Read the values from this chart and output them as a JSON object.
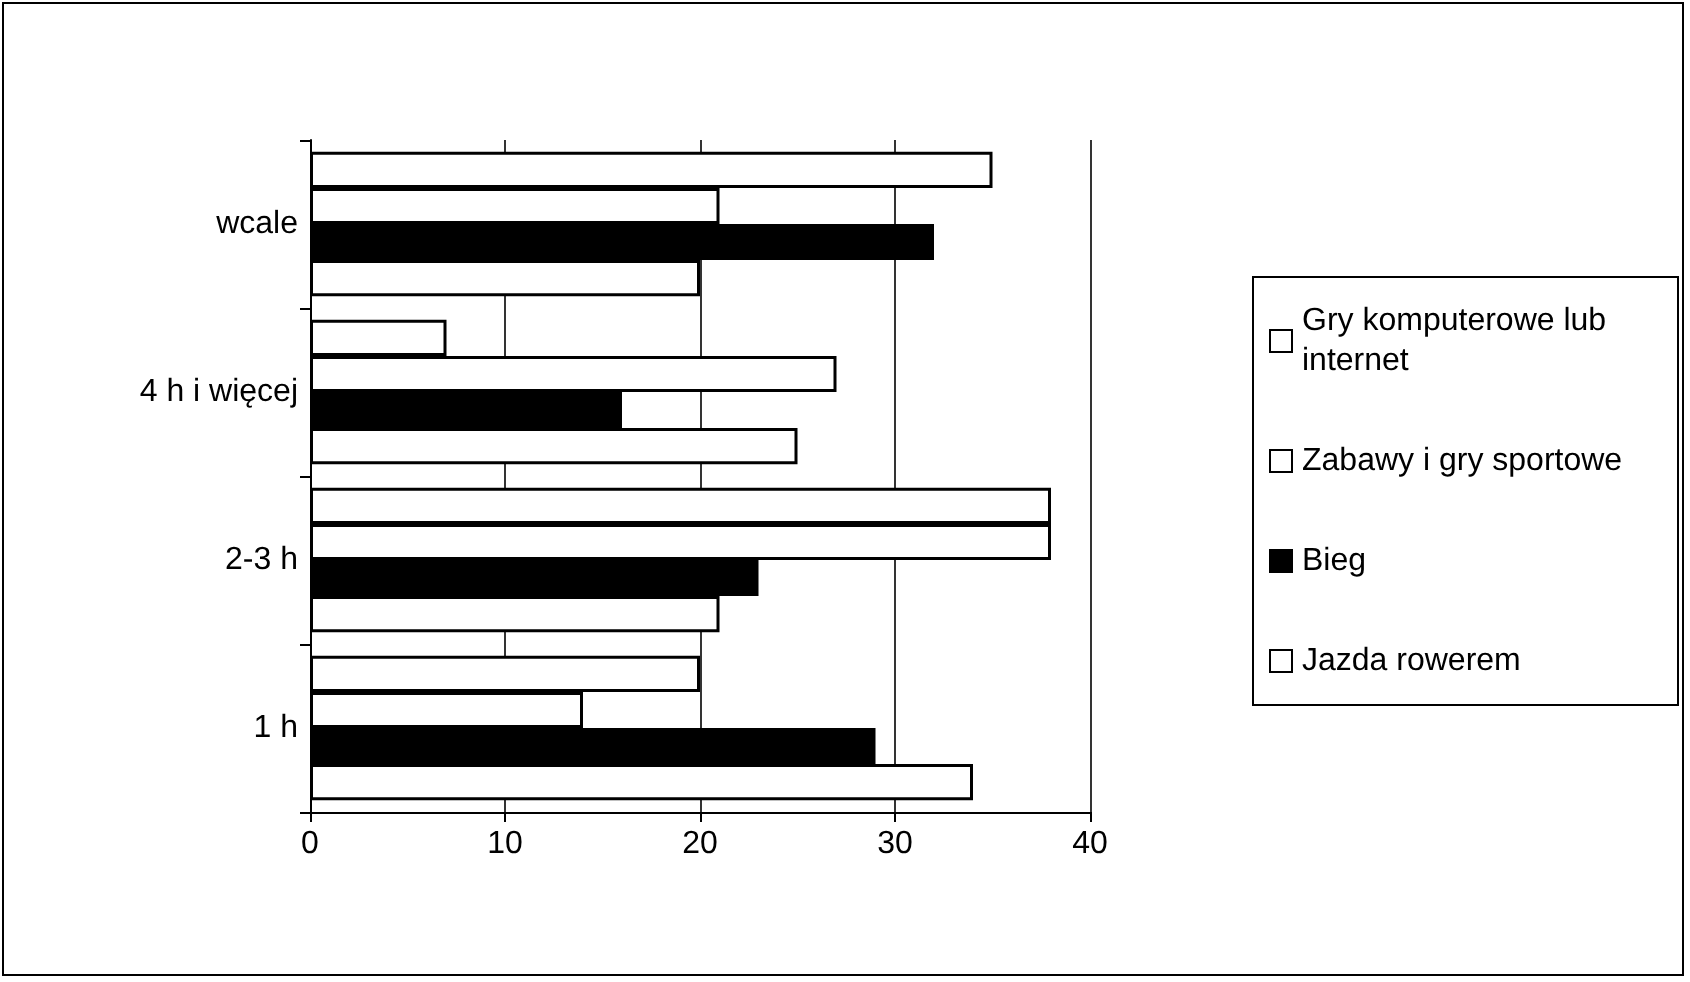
{
  "chart_data": {
    "type": "bar",
    "orientation": "horizontal",
    "categories": [
      "wcale",
      "4 h i więcej",
      "2-3 h",
      "1 h"
    ],
    "series": [
      {
        "name": "Gry komputerowe lub internet",
        "color": "#ffffff",
        "values": [
          35,
          7,
          38,
          20
        ]
      },
      {
        "name": "Zabawy i gry sportowe",
        "color": "#ffffff",
        "values": [
          21,
          27,
          38,
          14
        ]
      },
      {
        "name": "Bieg",
        "color": "#000000",
        "values": [
          32,
          16,
          23,
          29
        ]
      },
      {
        "name": "Jazda rowerem",
        "color": "#ffffff",
        "values": [
          20,
          25,
          21,
          34
        ]
      }
    ],
    "xlim": [
      0,
      40
    ],
    "xticks": [
      0,
      10,
      20,
      30,
      40
    ],
    "grid": "x",
    "legend": "right"
  }
}
